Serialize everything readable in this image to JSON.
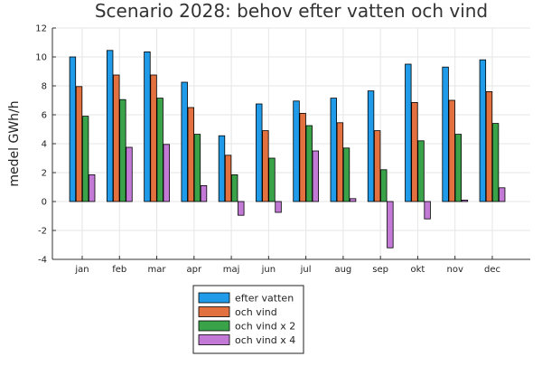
{
  "chart_data": {
    "type": "bar",
    "title": "Scenario 2028: behov efter vatten och vind",
    "xlabel": "",
    "ylabel": "medel GWh/h",
    "ylim": [
      -4,
      12
    ],
    "yticks": [
      -4,
      -2,
      0,
      2,
      4,
      6,
      8,
      10,
      12
    ],
    "grid": true,
    "legend_position": "bottom-left-outside",
    "categories": [
      "jan",
      "feb",
      "mar",
      "apr",
      "maj",
      "jun",
      "jul",
      "aug",
      "sep",
      "okt",
      "nov",
      "dec"
    ],
    "series": [
      {
        "name": "efter vatten",
        "color": "#1f9be9",
        "values": [
          10.0,
          10.45,
          10.35,
          8.25,
          4.55,
          6.75,
          6.95,
          7.15,
          7.65,
          9.5,
          9.3,
          9.8
        ]
      },
      {
        "name": "och vind",
        "color": "#e3703f",
        "values": [
          7.95,
          8.75,
          8.75,
          6.5,
          3.2,
          4.9,
          6.1,
          5.45,
          4.9,
          6.85,
          7.0,
          7.6
        ]
      },
      {
        "name": "och vind x 2",
        "color": "#3aa34a",
        "values": [
          5.9,
          7.05,
          7.15,
          4.65,
          1.85,
          3.0,
          5.25,
          3.7,
          2.2,
          4.2,
          4.65,
          5.4
        ]
      },
      {
        "name": "och vind x 4",
        "color": "#c27ad6",
        "values": [
          1.85,
          3.75,
          3.95,
          1.1,
          -0.95,
          -0.75,
          3.5,
          0.2,
          -3.2,
          -1.2,
          0.1,
          0.95
        ]
      }
    ]
  }
}
